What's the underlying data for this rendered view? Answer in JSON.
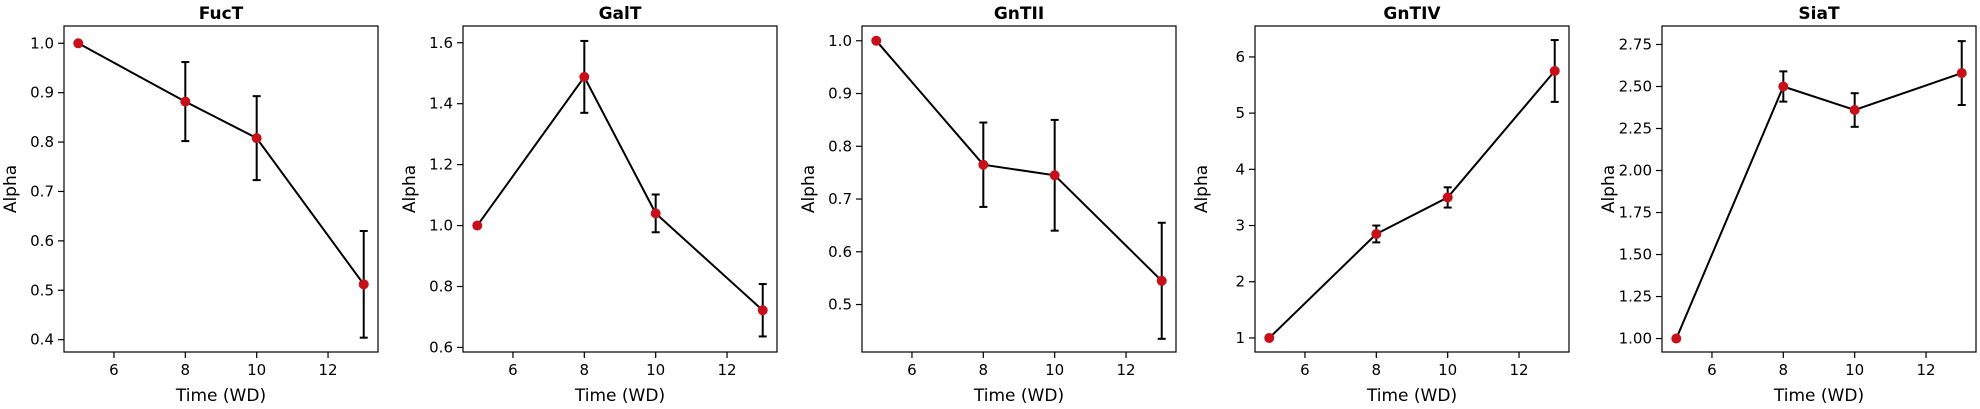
{
  "chart_data": [
    {
      "type": "line",
      "title": "FucT",
      "xlabel": "Time (WD)",
      "ylabel": "Alpha",
      "xlim": [
        4.6,
        13.4
      ],
      "ylim": [
        0.375,
        1.035
      ],
      "xticks": [
        6,
        8,
        10,
        12
      ],
      "yticks": [
        0.4,
        0.5,
        0.6,
        0.7,
        0.8,
        0.9,
        1.0
      ],
      "ytick_labels": [
        "0.4",
        "0.5",
        "0.6",
        "0.7",
        "0.8",
        "0.9",
        "1.0"
      ],
      "x": [
        5,
        8,
        10,
        13
      ],
      "y": [
        1.0,
        0.882,
        0.808,
        0.512
      ],
      "yerr": [
        0.0,
        0.08,
        0.085,
        0.108
      ],
      "grid": false,
      "colors": {
        "line": "#000000",
        "marker": "#c8101a"
      }
    },
    {
      "type": "line",
      "title": "GalT",
      "xlabel": "Time (WD)",
      "ylabel": "Alpha",
      "xlim": [
        4.6,
        13.4
      ],
      "ylim": [
        0.585,
        1.655
      ],
      "xticks": [
        6,
        8,
        10,
        12
      ],
      "yticks": [
        0.6,
        0.8,
        1.0,
        1.2,
        1.4,
        1.6
      ],
      "ytick_labels": [
        "0.6",
        "0.8",
        "1.0",
        "1.2",
        "1.4",
        "1.6"
      ],
      "x": [
        5,
        8,
        10,
        13
      ],
      "y": [
        1.0,
        1.488,
        1.04,
        0.722
      ],
      "yerr": [
        0.0,
        0.118,
        0.062,
        0.086
      ],
      "grid": false,
      "colors": {
        "line": "#000000",
        "marker": "#c8101a"
      }
    },
    {
      "type": "line",
      "title": "GnTII",
      "xlabel": "Time (WD)",
      "ylabel": "Alpha",
      "xlim": [
        4.6,
        13.4
      ],
      "ylim": [
        0.41,
        1.028
      ],
      "xticks": [
        6,
        8,
        10,
        12
      ],
      "yticks": [
        0.5,
        0.6,
        0.7,
        0.8,
        0.9,
        1.0
      ],
      "ytick_labels": [
        "0.5",
        "0.6",
        "0.7",
        "0.8",
        "0.9",
        "1.0"
      ],
      "x": [
        5,
        8,
        10,
        13
      ],
      "y": [
        1.0,
        0.765,
        0.745,
        0.545
      ],
      "yerr": [
        0.0,
        0.08,
        0.105,
        0.11
      ],
      "grid": false,
      "colors": {
        "line": "#000000",
        "marker": "#c8101a"
      }
    },
    {
      "type": "line",
      "title": "GnTIV",
      "xlabel": "Time (WD)",
      "ylabel": "Alpha",
      "xlim": [
        4.6,
        13.4
      ],
      "ylim": [
        0.75,
        6.55
      ],
      "xticks": [
        6,
        8,
        10,
        12
      ],
      "yticks": [
        1,
        2,
        3,
        4,
        5,
        6
      ],
      "ytick_labels": [
        "1",
        "2",
        "3",
        "4",
        "5",
        "6"
      ],
      "x": [
        5,
        8,
        10,
        13
      ],
      "y": [
        1.0,
        2.85,
        3.5,
        5.75
      ],
      "yerr": [
        0.0,
        0.15,
        0.18,
        0.55
      ],
      "grid": false,
      "colors": {
        "line": "#000000",
        "marker": "#c8101a"
      }
    },
    {
      "type": "line",
      "title": "SiaT",
      "xlabel": "Time (WD)",
      "ylabel": "Alpha",
      "xlim": [
        4.6,
        13.4
      ],
      "ylim": [
        0.92,
        2.86
      ],
      "xticks": [
        6,
        8,
        10,
        12
      ],
      "yticks": [
        1.0,
        1.25,
        1.5,
        1.75,
        2.0,
        2.25,
        2.5,
        2.75
      ],
      "ytick_labels": [
        "1.00",
        "1.25",
        "1.50",
        "1.75",
        "2.00",
        "2.25",
        "2.50",
        "2.75"
      ],
      "x": [
        5,
        8,
        10,
        13
      ],
      "y": [
        1.0,
        2.5,
        2.36,
        2.58
      ],
      "yerr": [
        0.0,
        0.09,
        0.1,
        0.19
      ],
      "grid": false,
      "colors": {
        "line": "#000000",
        "marker": "#c8101a"
      }
    }
  ]
}
